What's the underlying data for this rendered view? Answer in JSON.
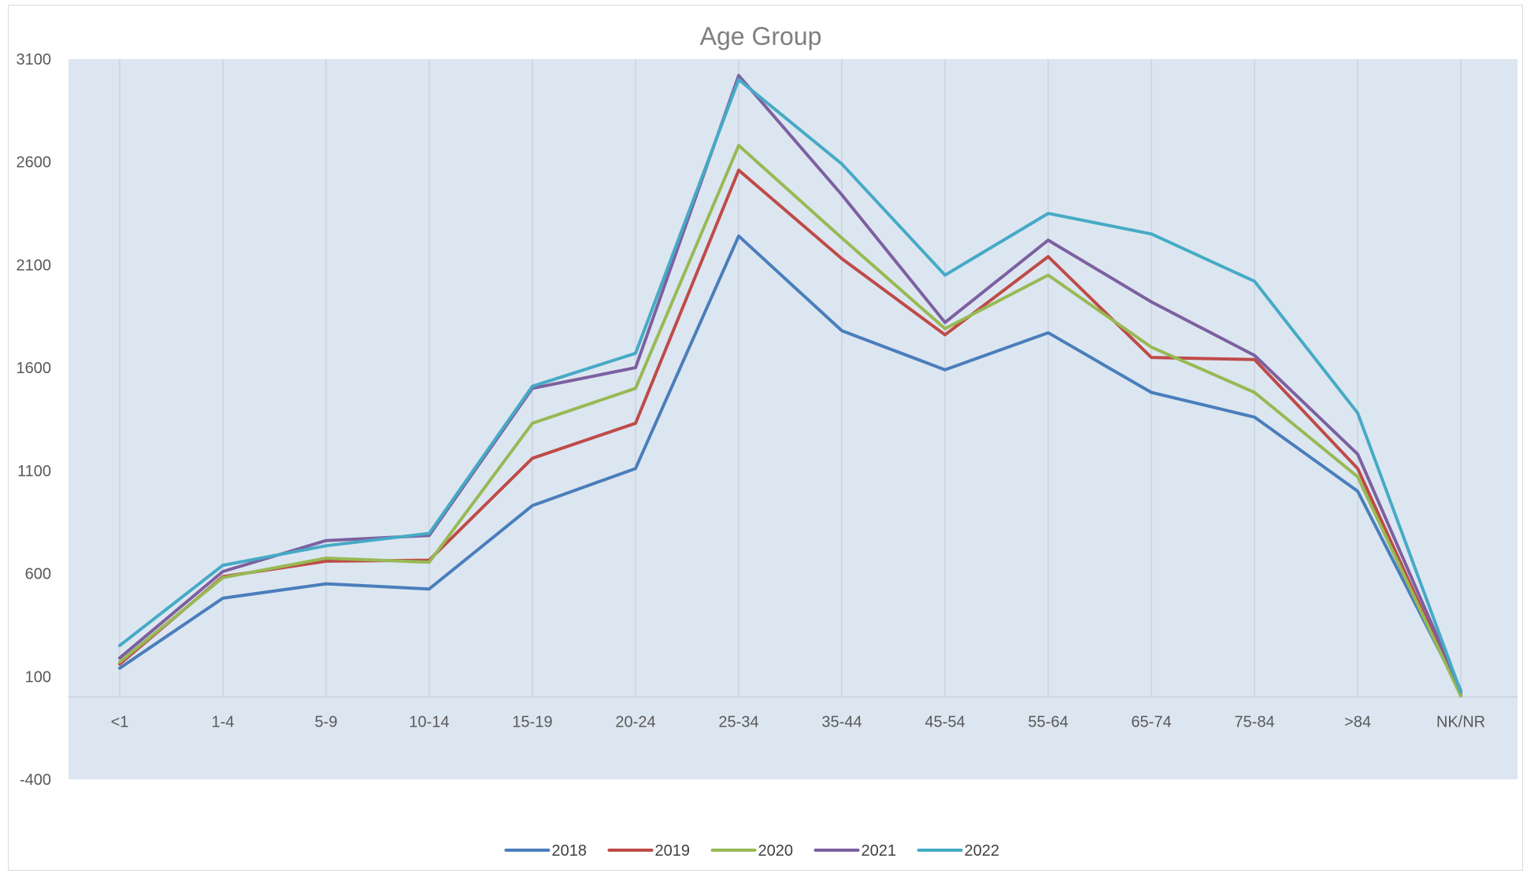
{
  "chart_data": {
    "type": "line",
    "title": "Age Group",
    "xlabel": "",
    "ylabel": "",
    "categories": [
      "<1",
      "1-4",
      "5-9",
      "10-14",
      "15-19",
      "20-24",
      "25-34",
      "35-44",
      "45-54",
      "55-64",
      "65-74",
      "75-84",
      ">84",
      "NK/NR"
    ],
    "ylim": [
      -400,
      3100
    ],
    "yticks": [
      3100,
      2600,
      2100,
      1600,
      1100,
      600,
      100,
      -400
    ],
    "grid": "vertical",
    "legend_position": "bottom",
    "plot_background": "#dce6f1",
    "series": [
      {
        "name": "2018",
        "color": "#4a7ebb",
        "values": [
          140,
          480,
          550,
          525,
          930,
          1110,
          2240,
          1780,
          1590,
          1770,
          1480,
          1360,
          1000,
          20
        ]
      },
      {
        "name": "2019",
        "color": "#be4b48",
        "values": [
          160,
          585,
          660,
          665,
          1160,
          1330,
          2560,
          2130,
          1760,
          2140,
          1650,
          1640,
          1110,
          10
        ]
      },
      {
        "name": "2020",
        "color": "#98b954",
        "values": [
          170,
          580,
          675,
          655,
          1330,
          1500,
          2680,
          2230,
          1790,
          2050,
          1700,
          1480,
          1070,
          5
        ]
      },
      {
        "name": "2021",
        "color": "#7d60a0",
        "values": [
          190,
          610,
          760,
          785,
          1500,
          1600,
          3020,
          2440,
          1820,
          2220,
          1920,
          1660,
          1180,
          30
        ]
      },
      {
        "name": "2022",
        "color": "#46aac5",
        "values": [
          250,
          640,
          735,
          795,
          1510,
          1670,
          3000,
          2590,
          2050,
          2350,
          2250,
          2020,
          1380,
          25
        ]
      }
    ]
  }
}
